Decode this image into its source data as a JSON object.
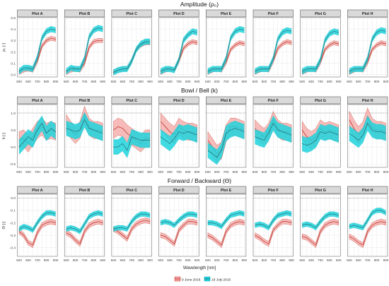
{
  "chart_data": {
    "type": "line",
    "legend": {
      "placement": "bottom",
      "entries": [
        {
          "label": "9 June 2016",
          "color": "#e8706e",
          "line": "solid",
          "band": "#f4a5a3"
        },
        {
          "label": "19 July 2016",
          "color": "#1a1a1a",
          "line": "dotted",
          "band": "#1fd3dd"
        }
      ]
    },
    "xlabel": "Wavelength [nm]",
    "panels": [
      "Plot A",
      "Plot B",
      "Plot C",
      "Plot D",
      "Plot E",
      "Plot F",
      "Plot G",
      "Plot H"
    ],
    "x": [
      500,
      550,
      600,
      650,
      700,
      750,
      800,
      850,
      900
    ],
    "x_ticks": [
      "500",
      "600",
      "700",
      "800",
      "900"
    ],
    "rows": [
      {
        "title": "Amplitude (ρ₀)",
        "ylabel": "ρ₀ [-]",
        "ylim": [
          -0.02,
          0.5
        ],
        "y_ticks": [
          0,
          0.1,
          0.2,
          0.3,
          0.4,
          0.5
        ],
        "y_tick_labels": [
          "0.0",
          "0.1",
          "0.2",
          "0.3",
          "0.4",
          "0.5"
        ],
        "ref_line": null,
        "series": [
          {
            "name": "9 June 2016",
            "band_width": 0.018,
            "values": [
              [
                0.02,
                0.04,
                0.05,
                0.04,
                0.12,
                0.25,
                0.3,
                0.32,
                0.31
              ],
              [
                0.02,
                0.04,
                0.05,
                0.04,
                0.1,
                0.24,
                0.29,
                0.3,
                0.3
              ],
              [
                0.02,
                0.04,
                0.05,
                0.05,
                0.12,
                0.22,
                0.26,
                0.28,
                0.28
              ],
              [
                0.02,
                0.04,
                0.05,
                0.04,
                0.12,
                0.23,
                0.27,
                0.29,
                0.28
              ],
              [
                0.02,
                0.04,
                0.05,
                0.04,
                0.11,
                0.22,
                0.26,
                0.28,
                0.27
              ],
              [
                0.02,
                0.04,
                0.05,
                0.04,
                0.12,
                0.23,
                0.27,
                0.29,
                0.28
              ],
              [
                0.02,
                0.04,
                0.05,
                0.04,
                0.11,
                0.22,
                0.26,
                0.28,
                0.27
              ],
              [
                0.02,
                0.04,
                0.05,
                0.04,
                0.11,
                0.22,
                0.26,
                0.28,
                0.27
              ]
            ]
          },
          {
            "name": "19 July 2016",
            "band_width": 0.025,
            "values": [
              [
                0.03,
                0.06,
                0.06,
                0.05,
                0.15,
                0.32,
                0.38,
                0.4,
                0.39
              ],
              [
                0.03,
                0.06,
                0.05,
                0.05,
                0.14,
                0.33,
                0.39,
                0.41,
                0.4
              ],
              [
                0.02,
                0.04,
                0.05,
                0.05,
                0.12,
                0.22,
                0.27,
                0.29,
                0.29
              ],
              [
                0.03,
                0.05,
                0.05,
                0.04,
                0.13,
                0.3,
                0.35,
                0.38,
                0.37
              ],
              [
                0.03,
                0.05,
                0.05,
                0.05,
                0.14,
                0.32,
                0.38,
                0.4,
                0.39
              ],
              [
                0.03,
                0.05,
                0.05,
                0.05,
                0.14,
                0.31,
                0.37,
                0.39,
                0.38
              ],
              [
                0.03,
                0.05,
                0.05,
                0.05,
                0.13,
                0.3,
                0.36,
                0.38,
                0.37
              ],
              [
                0.03,
                0.05,
                0.05,
                0.05,
                0.14,
                0.31,
                0.37,
                0.39,
                0.38
              ]
            ]
          }
        ]
      },
      {
        "title": "Bowl / Bell (k)",
        "ylabel": "k [-]",
        "ylim": [
          -0.6,
          1.25
        ],
        "y_ticks": [
          -0.5,
          0,
          0.5,
          1.0
        ],
        "y_tick_labels": [
          "-0.5",
          "0.0",
          "0.5",
          "1.0"
        ],
        "ref_line": 1.0,
        "series": [
          {
            "name": "9 June 2016",
            "band_width": 0.25,
            "values": [
              [
                0.2,
                0.25,
                0.1,
                0.3,
                0.5,
                0.6,
                0.45,
                0.5,
                0.45
              ],
              [
                0.7,
                0.5,
                0.35,
                0.5,
                0.95,
                0.6,
                0.5,
                0.5,
                0.45
              ],
              [
                0.5,
                0.6,
                0.55,
                0.4,
                0.3,
                0.2,
                0.1,
                0.25,
                0.25
              ],
              [
                0.75,
                0.6,
                0.45,
                0.35,
                0.6,
                0.5,
                0.45,
                0.45,
                0.4
              ],
              [
                0.2,
                0.0,
                -0.2,
                -0.1,
                0.4,
                0.6,
                0.6,
                0.55,
                0.5
              ],
              [
                0.55,
                0.4,
                0.3,
                0.45,
                0.8,
                0.55,
                0.45,
                0.45,
                0.4
              ],
              [
                0.5,
                0.3,
                0.2,
                0.3,
                0.55,
                0.45,
                0.5,
                0.45,
                0.4
              ],
              [
                0.8,
                0.55,
                0.35,
                0.5,
                0.9,
                0.6,
                0.5,
                0.5,
                0.45
              ]
            ]
          },
          {
            "name": "19 July 2016",
            "band_width": 0.22,
            "values": [
              [
                0.0,
                0.15,
                0.3,
                0.2,
                0.5,
                0.7,
                0.4,
                0.55,
                0.45
              ],
              [
                0.55,
                0.5,
                0.45,
                0.5,
                0.8,
                0.55,
                0.5,
                0.45,
                0.4
              ],
              [
                0.0,
                0.0,
                0.1,
                -0.1,
                0.3,
                0.25,
                0.2,
                0.2,
                0.2
              ],
              [
                0.3,
                0.2,
                0.1,
                0.25,
                0.45,
                0.4,
                0.45,
                0.4,
                0.35
              ],
              [
                -0.1,
                -0.2,
                -0.3,
                -0.1,
                0.4,
                0.5,
                0.55,
                0.5,
                0.45
              ],
              [
                0.3,
                0.25,
                0.2,
                0.4,
                0.7,
                0.5,
                0.45,
                0.4,
                0.35
              ],
              [
                0.1,
                0.05,
                0.1,
                0.2,
                0.45,
                0.4,
                0.45,
                0.4,
                0.35
              ],
              [
                0.4,
                0.3,
                0.2,
                0.35,
                0.7,
                0.5,
                0.45,
                0.45,
                0.4
              ]
            ]
          }
        ]
      },
      {
        "title": "Forward / Backward (Θ)",
        "ylabel": "Θ [-]",
        "ylim": [
          -0.47,
          0.03
        ],
        "y_ticks": [
          -0.4,
          -0.3,
          -0.2,
          -0.1,
          0.0
        ],
        "y_tick_labels": [
          "-0.4",
          "-0.3",
          "-0.2",
          "-0.1",
          "0.0"
        ],
        "ref_line": 0.0,
        "series": [
          {
            "name": "9 June 2016",
            "band_width": 0.02,
            "values": [
              [
                -0.27,
                -0.3,
                -0.36,
                -0.38,
                -0.28,
                -0.22,
                -0.2,
                -0.19,
                -0.2
              ],
              [
                -0.28,
                -0.3,
                -0.34,
                -0.37,
                -0.27,
                -0.22,
                -0.2,
                -0.19,
                -0.2
              ],
              [
                -0.25,
                -0.27,
                -0.3,
                -0.33,
                -0.25,
                -0.21,
                -0.19,
                -0.18,
                -0.19
              ],
              [
                -0.3,
                -0.31,
                -0.34,
                -0.37,
                -0.26,
                -0.22,
                -0.19,
                -0.19,
                -0.2
              ],
              [
                -0.3,
                -0.32,
                -0.35,
                -0.38,
                -0.27,
                -0.22,
                -0.2,
                -0.19,
                -0.2
              ],
              [
                -0.3,
                -0.32,
                -0.35,
                -0.37,
                -0.26,
                -0.22,
                -0.19,
                -0.19,
                -0.2
              ],
              [
                -0.31,
                -0.32,
                -0.35,
                -0.38,
                -0.27,
                -0.22,
                -0.2,
                -0.19,
                -0.2
              ],
              [
                -0.31,
                -0.33,
                -0.36,
                -0.38,
                -0.27,
                -0.22,
                -0.2,
                -0.19,
                -0.2
              ]
            ]
          },
          {
            "name": "19 July 2016",
            "band_width": 0.02,
            "values": [
              [
                -0.25,
                -0.23,
                -0.24,
                -0.26,
                -0.2,
                -0.15,
                -0.12,
                -0.12,
                -0.13
              ],
              [
                -0.25,
                -0.24,
                -0.25,
                -0.27,
                -0.21,
                -0.15,
                -0.13,
                -0.12,
                -0.13
              ],
              [
                -0.25,
                -0.24,
                -0.24,
                -0.25,
                -0.19,
                -0.15,
                -0.13,
                -0.13,
                -0.14
              ],
              [
                -0.2,
                -0.19,
                -0.2,
                -0.22,
                -0.18,
                -0.15,
                -0.13,
                -0.13,
                -0.14
              ],
              [
                -0.2,
                -0.2,
                -0.21,
                -0.23,
                -0.18,
                -0.14,
                -0.13,
                -0.12,
                -0.13
              ],
              [
                -0.22,
                -0.21,
                -0.22,
                -0.24,
                -0.18,
                -0.14,
                -0.13,
                -0.12,
                -0.13
              ],
              [
                -0.22,
                -0.21,
                -0.22,
                -0.24,
                -0.19,
                -0.15,
                -0.13,
                -0.13,
                -0.14
              ],
              [
                -0.23,
                -0.22,
                -0.23,
                -0.24,
                -0.18,
                -0.12,
                -0.1,
                -0.1,
                -0.12
              ]
            ]
          }
        ]
      }
    ]
  }
}
